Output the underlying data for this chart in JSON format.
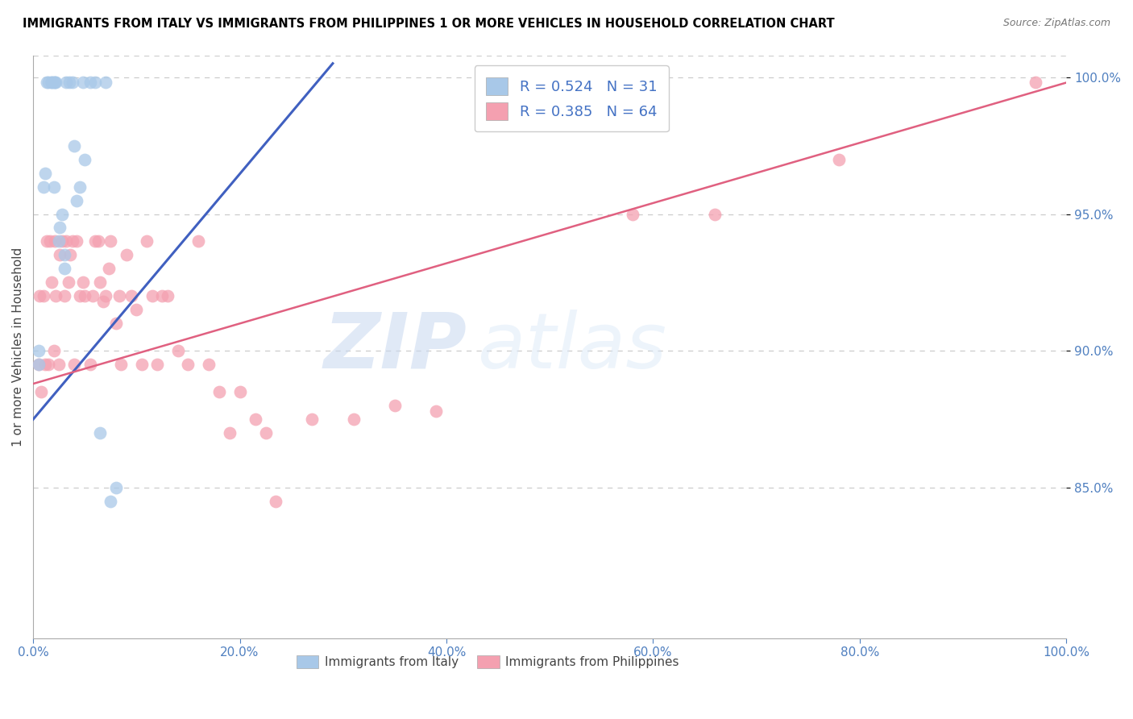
{
  "title": "IMMIGRANTS FROM ITALY VS IMMIGRANTS FROM PHILIPPINES 1 OR MORE VEHICLES IN HOUSEHOLD CORRELATION CHART",
  "source": "Source: ZipAtlas.com",
  "ylabel": "1 or more Vehicles in Household",
  "xlim": [
    0.0,
    1.0
  ],
  "ylim": [
    0.795,
    1.008
  ],
  "yticks": [
    0.85,
    0.9,
    0.95,
    1.0
  ],
  "ytick_labels": [
    "85.0%",
    "90.0%",
    "95.0%",
    "100.0%"
  ],
  "xticks": [
    0.0,
    0.2,
    0.4,
    0.6,
    0.8,
    1.0
  ],
  "xtick_labels": [
    "0.0%",
    "20.0%",
    "40.0%",
    "60.0%",
    "80.0%",
    "100.0%"
  ],
  "italy_R": 0.524,
  "italy_N": 31,
  "philippines_R": 0.385,
  "philippines_N": 64,
  "italy_color": "#a8c8e8",
  "philippines_color": "#f4a0b0",
  "italy_line_color": "#4060c0",
  "philippines_line_color": "#e06080",
  "italy_x": [
    0.005,
    0.005,
    0.01,
    0.012,
    0.013,
    0.015,
    0.018,
    0.018,
    0.02,
    0.02,
    0.021,
    0.022,
    0.025,
    0.026,
    0.028,
    0.03,
    0.03,
    0.032,
    0.035,
    0.038,
    0.04,
    0.042,
    0.045,
    0.048,
    0.05,
    0.055,
    0.06,
    0.065,
    0.07,
    0.075,
    0.08
  ],
  "italy_y": [
    0.9,
    0.895,
    0.96,
    0.965,
    0.998,
    0.998,
    0.998,
    0.998,
    0.96,
    0.998,
    0.998,
    0.998,
    0.94,
    0.945,
    0.95,
    0.93,
    0.935,
    0.998,
    0.998,
    0.998,
    0.975,
    0.955,
    0.96,
    0.998,
    0.97,
    0.998,
    0.998,
    0.87,
    0.998,
    0.845,
    0.85
  ],
  "philippines_x": [
    0.005,
    0.006,
    0.008,
    0.01,
    0.012,
    0.013,
    0.015,
    0.016,
    0.018,
    0.02,
    0.021,
    0.022,
    0.025,
    0.026,
    0.028,
    0.03,
    0.032,
    0.034,
    0.036,
    0.038,
    0.04,
    0.042,
    0.045,
    0.048,
    0.05,
    0.055,
    0.058,
    0.06,
    0.063,
    0.065,
    0.068,
    0.07,
    0.073,
    0.075,
    0.08,
    0.083,
    0.085,
    0.09,
    0.095,
    0.1,
    0.105,
    0.11,
    0.115,
    0.12,
    0.125,
    0.13,
    0.14,
    0.15,
    0.16,
    0.17,
    0.18,
    0.19,
    0.2,
    0.215,
    0.225,
    0.235,
    0.27,
    0.31,
    0.35,
    0.39,
    0.58,
    0.66,
    0.78,
    0.97
  ],
  "philippines_y": [
    0.895,
    0.92,
    0.885,
    0.92,
    0.895,
    0.94,
    0.895,
    0.94,
    0.925,
    0.9,
    0.94,
    0.92,
    0.895,
    0.935,
    0.94,
    0.92,
    0.94,
    0.925,
    0.935,
    0.94,
    0.895,
    0.94,
    0.92,
    0.925,
    0.92,
    0.895,
    0.92,
    0.94,
    0.94,
    0.925,
    0.918,
    0.92,
    0.93,
    0.94,
    0.91,
    0.92,
    0.895,
    0.935,
    0.92,
    0.915,
    0.895,
    0.94,
    0.92,
    0.895,
    0.92,
    0.92,
    0.9,
    0.895,
    0.94,
    0.895,
    0.885,
    0.87,
    0.885,
    0.875,
    0.87,
    0.845,
    0.875,
    0.875,
    0.88,
    0.878,
    0.95,
    0.95,
    0.97,
    0.998
  ],
  "italy_line_x": [
    0.0,
    0.29
  ],
  "italy_line_y": [
    0.875,
    1.005
  ],
  "philippines_line_x": [
    0.0,
    1.0
  ],
  "philippines_line_y": [
    0.888,
    0.998
  ]
}
